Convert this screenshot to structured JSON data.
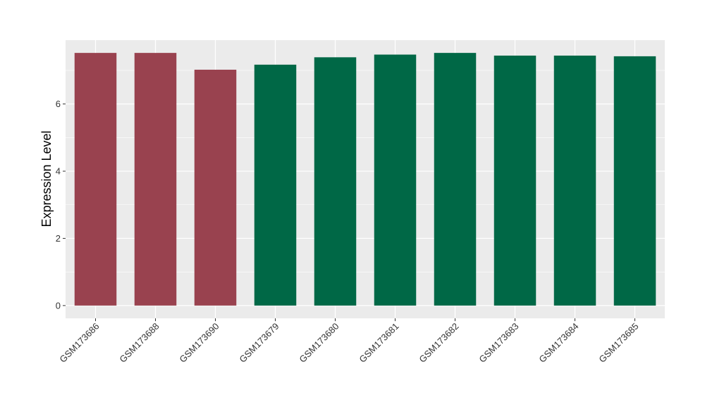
{
  "chart_data": {
    "type": "bar",
    "title": "",
    "xlabel": "",
    "ylabel": "Expression Level",
    "categories": [
      "GSM173686",
      "GSM173688",
      "GSM173690",
      "GSM173679",
      "GSM173680",
      "GSM173681",
      "GSM173682",
      "GSM173683",
      "GSM173684",
      "GSM173685"
    ],
    "values": [
      7.52,
      7.52,
      7.02,
      7.17,
      7.39,
      7.47,
      7.52,
      7.44,
      7.44,
      7.42
    ],
    "bar_colors": [
      "#99424F",
      "#99424F",
      "#99424F",
      "#006846",
      "#006846",
      "#006846",
      "#006846",
      "#006846",
      "#006846",
      "#006846"
    ],
    "yticks": [
      0,
      2,
      4,
      6
    ],
    "ytick_labels": [
      "0",
      "2",
      "4",
      "6"
    ],
    "ylim": [
      -0.38,
      7.9
    ],
    "grid": true,
    "panel_background": "#EBEBEB",
    "grid_color": "#FFFFFF"
  }
}
